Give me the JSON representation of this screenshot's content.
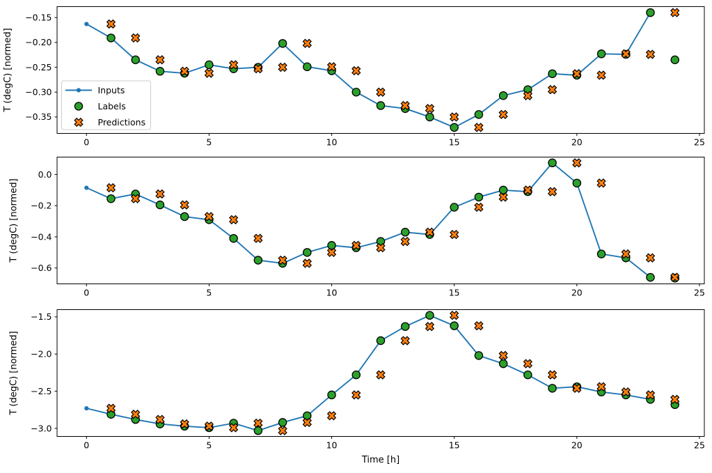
{
  "figure": {
    "background": "#ffffff"
  },
  "colors": {
    "inputs": "#1f77b4",
    "labels": "#2ca02c",
    "predictions": "#ff7f0e",
    "marker_edge": "#000000",
    "spine": "#000000",
    "text": "#000000",
    "legend_border": "#cccccc",
    "legend_fill": "rgba(255,255,255,0.85)"
  },
  "legend": {
    "position": "center-left-first-subplot",
    "items": [
      {
        "label": "Inputs",
        "style": "line-dot"
      },
      {
        "label": "Labels",
        "style": "circle"
      },
      {
        "label": "Predictions",
        "style": "x-cross"
      }
    ]
  },
  "chart_data": [
    {
      "type": "line",
      "title": "",
      "xlabel": "",
      "ylabel": "T (degC) [normed]",
      "xlim": [
        -1.2,
        25.2
      ],
      "ylim": [
        -0.383,
        -0.128
      ],
      "xticks": [
        0,
        5,
        10,
        15,
        20,
        25
      ],
      "xticklabels": [
        "0",
        "5",
        "10",
        "15",
        "20",
        "25"
      ],
      "yticks": [
        -0.15,
        -0.2,
        -0.25,
        -0.3,
        -0.35
      ],
      "yticklabels": [
        "−0.15",
        "−0.20",
        "−0.25",
        "−0.30",
        "−0.35"
      ],
      "grid": false,
      "legend": true,
      "series": [
        {
          "name": "Inputs",
          "style": "line-dot",
          "x": [
            0,
            1,
            2,
            3,
            4,
            5,
            6,
            7,
            8,
            9,
            10,
            11,
            12,
            13,
            14,
            15,
            16,
            17,
            18,
            19,
            20,
            21,
            22,
            23
          ],
          "y": [
            -0.163,
            -0.191,
            -0.235,
            -0.258,
            -0.262,
            -0.245,
            -0.253,
            -0.25,
            -0.202,
            -0.249,
            -0.257,
            -0.3,
            -0.327,
            -0.333,
            -0.35,
            -0.371,
            -0.345,
            -0.307,
            -0.295,
            -0.263,
            -0.266,
            -0.223,
            -0.224,
            -0.14
          ]
        },
        {
          "name": "Labels",
          "style": "circle",
          "x": [
            1,
            2,
            3,
            4,
            5,
            6,
            7,
            8,
            9,
            10,
            11,
            12,
            13,
            14,
            15,
            16,
            17,
            18,
            19,
            20,
            21,
            22,
            23,
            24
          ],
          "y": [
            -0.191,
            -0.235,
            -0.258,
            -0.262,
            -0.245,
            -0.253,
            -0.25,
            -0.202,
            -0.249,
            -0.257,
            -0.3,
            -0.327,
            -0.333,
            -0.35,
            -0.371,
            -0.345,
            -0.307,
            -0.295,
            -0.263,
            -0.266,
            -0.223,
            -0.224,
            -0.14,
            -0.235
          ]
        },
        {
          "name": "Predictions",
          "style": "x-cross",
          "x": [
            1,
            2,
            3,
            4,
            5,
            6,
            7,
            8,
            9,
            10,
            11,
            12,
            13,
            14,
            15,
            16,
            17,
            18,
            19,
            20,
            21,
            22,
            23,
            24
          ],
          "y": [
            -0.163,
            -0.191,
            -0.235,
            -0.258,
            -0.262,
            -0.245,
            -0.253,
            -0.25,
            -0.202,
            -0.249,
            -0.257,
            -0.3,
            -0.327,
            -0.333,
            -0.35,
            -0.371,
            -0.345,
            -0.307,
            -0.295,
            -0.263,
            -0.266,
            -0.223,
            -0.224,
            -0.14
          ]
        }
      ]
    },
    {
      "type": "line",
      "title": "",
      "xlabel": "",
      "ylabel": "T (degC) [normed]",
      "xlim": [
        -1.2,
        25.2
      ],
      "ylim": [
        -0.702,
        0.112
      ],
      "xticks": [
        0,
        5,
        10,
        15,
        20,
        25
      ],
      "xticklabels": [
        "0",
        "5",
        "10",
        "15",
        "20",
        "25"
      ],
      "yticks": [
        0.0,
        -0.2,
        -0.4,
        -0.6
      ],
      "yticklabels": [
        "0.0",
        "−0.2",
        "−0.4",
        "−0.6"
      ],
      "grid": false,
      "legend": false,
      "series": [
        {
          "name": "Inputs",
          "style": "line-dot",
          "x": [
            0,
            1,
            2,
            3,
            4,
            5,
            6,
            7,
            8,
            9,
            10,
            11,
            12,
            13,
            14,
            15,
            16,
            17,
            18,
            19,
            20,
            21,
            22,
            23
          ],
          "y": [
            -0.085,
            -0.155,
            -0.125,
            -0.195,
            -0.27,
            -0.29,
            -0.41,
            -0.55,
            -0.57,
            -0.5,
            -0.455,
            -0.47,
            -0.43,
            -0.37,
            -0.385,
            -0.21,
            -0.145,
            -0.1,
            -0.11,
            0.075,
            -0.055,
            -0.51,
            -0.535,
            -0.66
          ]
        },
        {
          "name": "Labels",
          "style": "circle",
          "x": [
            1,
            2,
            3,
            4,
            5,
            6,
            7,
            8,
            9,
            10,
            11,
            12,
            13,
            14,
            15,
            16,
            17,
            18,
            19,
            20,
            21,
            22,
            23,
            24
          ],
          "y": [
            -0.155,
            -0.125,
            -0.195,
            -0.27,
            -0.29,
            -0.41,
            -0.55,
            -0.57,
            -0.5,
            -0.455,
            -0.47,
            -0.43,
            -0.37,
            -0.385,
            -0.21,
            -0.145,
            -0.1,
            -0.11,
            0.075,
            -0.055,
            -0.51,
            -0.535,
            -0.66,
            -0.665
          ]
        },
        {
          "name": "Predictions",
          "style": "x-cross",
          "x": [
            1,
            2,
            3,
            4,
            5,
            6,
            7,
            8,
            9,
            10,
            11,
            12,
            13,
            14,
            15,
            16,
            17,
            18,
            19,
            20,
            21,
            22,
            23,
            24
          ],
          "y": [
            -0.085,
            -0.155,
            -0.125,
            -0.195,
            -0.27,
            -0.29,
            -0.41,
            -0.55,
            -0.57,
            -0.5,
            -0.455,
            -0.47,
            -0.43,
            -0.37,
            -0.385,
            -0.21,
            -0.145,
            -0.1,
            -0.11,
            0.075,
            -0.055,
            -0.51,
            -0.535,
            -0.66
          ]
        }
      ]
    },
    {
      "type": "line",
      "title": "",
      "xlabel": "Time [h]",
      "ylabel": "T (degC) [normed]",
      "xlim": [
        -1.2,
        25.2
      ],
      "ylim": [
        -3.108,
        -1.403
      ],
      "xticks": [
        0,
        5,
        10,
        15,
        20,
        25
      ],
      "xticklabels": [
        "0",
        "5",
        "10",
        "15",
        "20",
        "25"
      ],
      "yticks": [
        -1.5,
        -2.0,
        -2.5,
        -3.0
      ],
      "yticklabels": [
        "−1.5",
        "−2.0",
        "−2.5",
        "−3.0"
      ],
      "grid": false,
      "legend": false,
      "series": [
        {
          "name": "Inputs",
          "style": "line-dot",
          "x": [
            0,
            1,
            2,
            3,
            4,
            5,
            6,
            7,
            8,
            9,
            10,
            11,
            12,
            13,
            14,
            15,
            16,
            17,
            18,
            19,
            20,
            21,
            22,
            23
          ],
          "y": [
            -2.73,
            -2.81,
            -2.88,
            -2.94,
            -2.97,
            -2.99,
            -2.93,
            -3.03,
            -2.92,
            -2.83,
            -2.55,
            -2.28,
            -1.82,
            -1.63,
            -1.48,
            -1.62,
            -2.02,
            -2.13,
            -2.28,
            -2.46,
            -2.44,
            -2.51,
            -2.55,
            -2.61
          ]
        },
        {
          "name": "Labels",
          "style": "circle",
          "x": [
            1,
            2,
            3,
            4,
            5,
            6,
            7,
            8,
            9,
            10,
            11,
            12,
            13,
            14,
            15,
            16,
            17,
            18,
            19,
            20,
            21,
            22,
            23,
            24
          ],
          "y": [
            -2.81,
            -2.88,
            -2.94,
            -2.97,
            -2.99,
            -2.93,
            -3.03,
            -2.92,
            -2.83,
            -2.55,
            -2.28,
            -1.82,
            -1.63,
            -1.48,
            -1.62,
            -2.02,
            -2.13,
            -2.28,
            -2.46,
            -2.44,
            -2.51,
            -2.55,
            -2.61,
            -2.68
          ]
        },
        {
          "name": "Predictions",
          "style": "x-cross",
          "x": [
            1,
            2,
            3,
            4,
            5,
            6,
            7,
            8,
            9,
            10,
            11,
            12,
            13,
            14,
            15,
            16,
            17,
            18,
            19,
            20,
            21,
            22,
            23,
            24
          ],
          "y": [
            -2.73,
            -2.81,
            -2.88,
            -2.94,
            -2.97,
            -2.99,
            -2.93,
            -3.03,
            -2.92,
            -2.83,
            -2.55,
            -2.28,
            -1.82,
            -1.63,
            -1.48,
            -1.62,
            -2.02,
            -2.13,
            -2.28,
            -2.46,
            -2.44,
            -2.51,
            -2.55,
            -2.61
          ]
        }
      ]
    }
  ]
}
